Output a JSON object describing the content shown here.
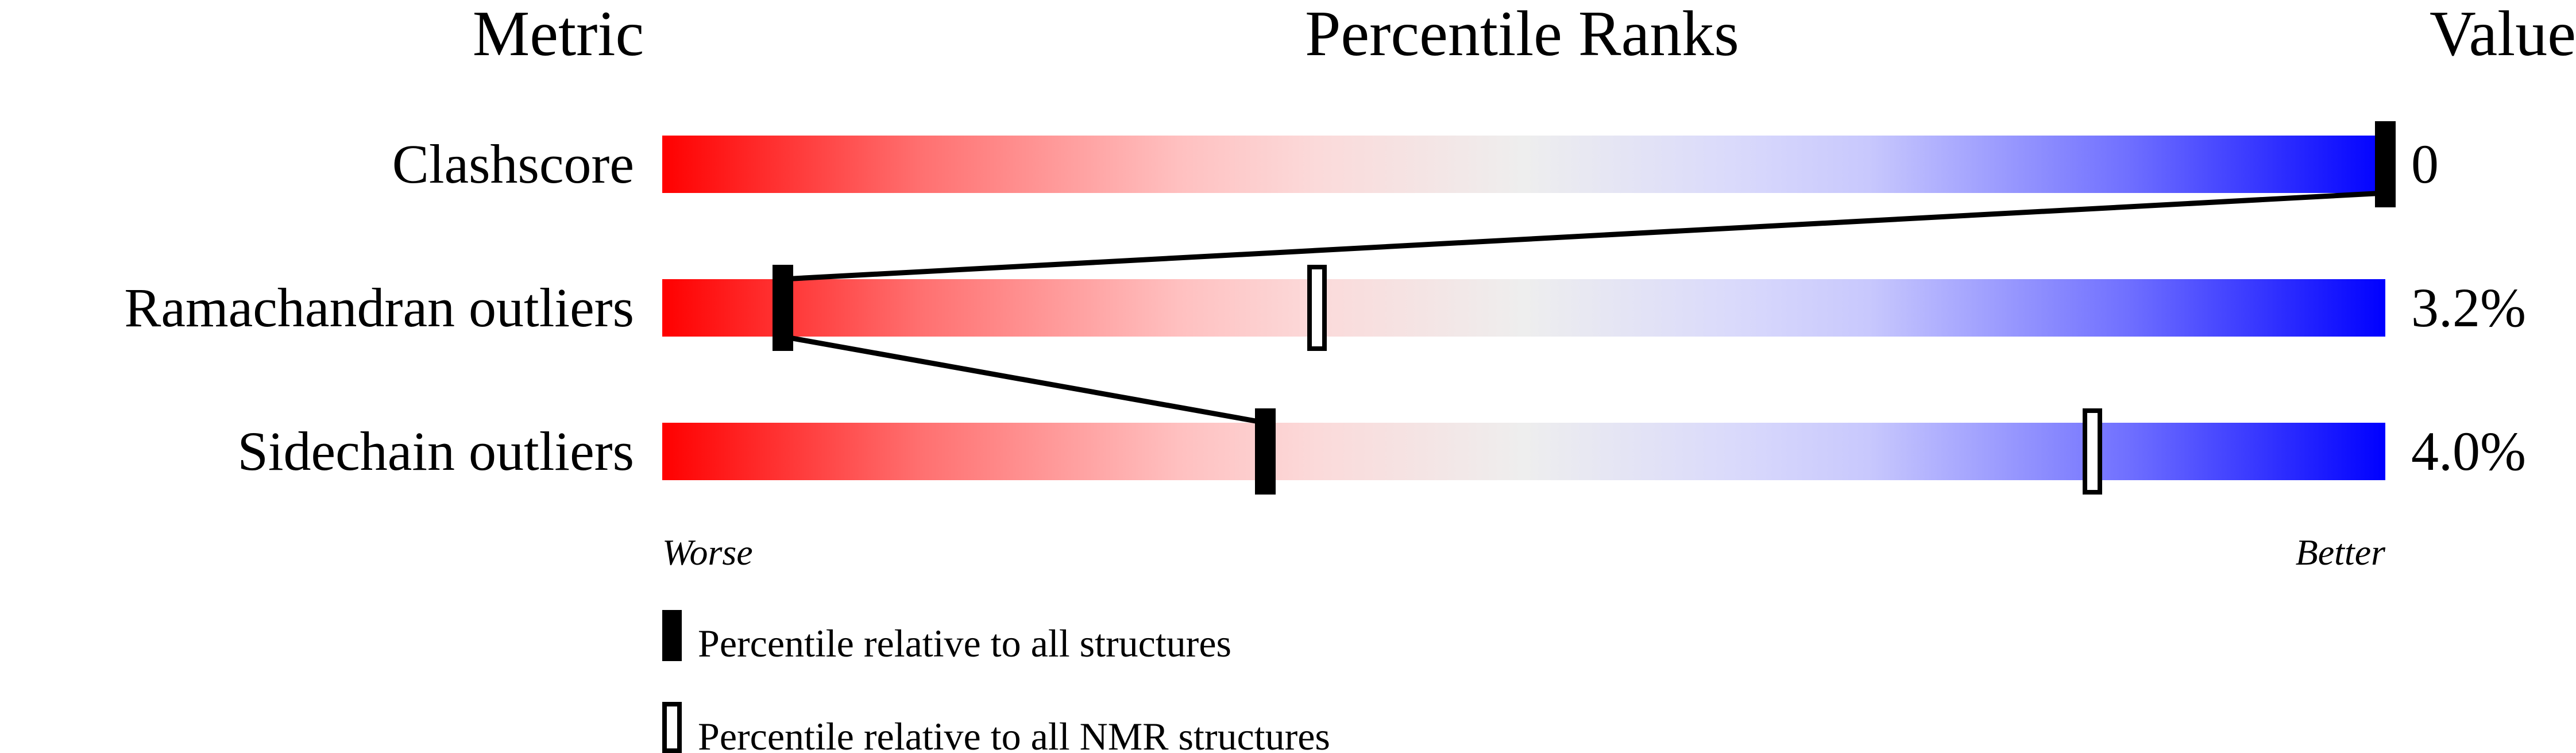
{
  "chart_data": {
    "type": "bar",
    "headers": {
      "metric": "Metric",
      "ranks": "Percentile Ranks",
      "value": "Value"
    },
    "metrics": [
      {
        "label": "Clashscore",
        "value": "0",
        "percentile_all": 100,
        "percentile_nmr": null
      },
      {
        "label": "Ramachandran outliers",
        "value": "3.2%",
        "percentile_all": 7,
        "percentile_nmr": 38
      },
      {
        "label": "Sidechain outliers",
        "value": "4.0%",
        "percentile_all": 35,
        "percentile_nmr": 83
      }
    ],
    "xlim": [
      0,
      100
    ],
    "axis_labels": {
      "worse": "Worse",
      "better": "Better"
    },
    "legend": {
      "all": "Percentile relative to all structures",
      "nmr": "Percentile relative to all NMR structures"
    },
    "colors": {
      "worse": "#ff0000",
      "middle": "#eeeeee",
      "better": "#0000ff",
      "marker": "#000000"
    }
  }
}
